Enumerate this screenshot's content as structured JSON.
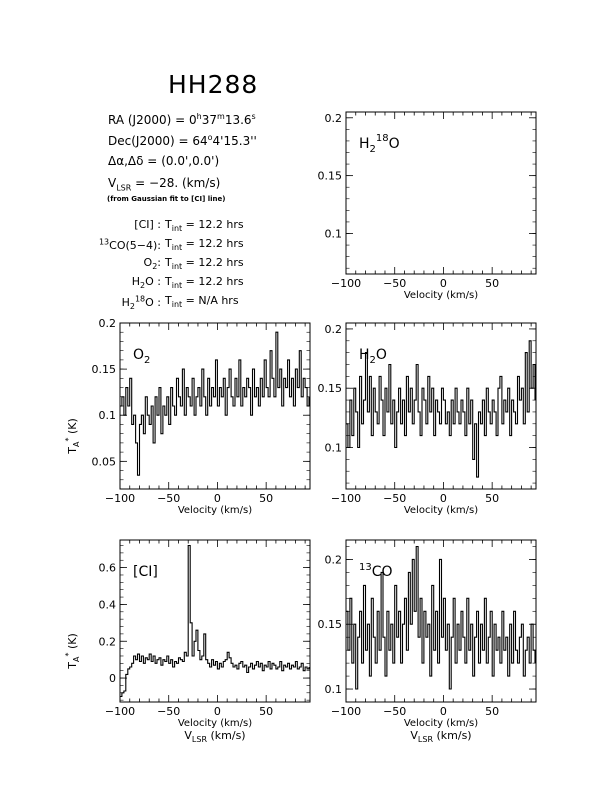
{
  "source": {
    "title": "HH288",
    "ra_label": "RA (J2000) =",
    "ra_h": "0",
    "ra_m": "37",
    "ra_s": "13.6",
    "dec_label": "Dec(J2000) =",
    "dec_deg": "64",
    "dec_rest": "4'15.3''",
    "offset_label": "Δα,Δδ =",
    "offset_value": "(0.0',0.0')",
    "vlsr_label": "V",
    "vlsr_sub": "LSR",
    "vlsr_value": "= −28. (km/s)",
    "vlsr_note": "(from Gaussian fit to [CI] line)"
  },
  "integration_times": [
    {
      "line_pre": "[CI] :",
      "line_sup": "",
      "value": "12.2 hrs"
    },
    {
      "line_pre": "CO(5−4):",
      "line_sup": "13",
      "value": "12.2 hrs"
    },
    {
      "line_pre": "O",
      "line_sub": "2",
      "line_post": ":",
      "value": "12.2 hrs"
    },
    {
      "line_pre": "H",
      "line_sub": "2",
      "line_post": "O :",
      "value": "12.2 hrs"
    },
    {
      "line_pre": "H",
      "line_sub": "2",
      "line_sup": "18",
      "line_post": "O :",
      "value": "N/A hrs"
    }
  ],
  "tint_label": "T",
  "tint_sub": "int",
  "tint_eq": "=",
  "chart_data": [
    {
      "id": "h218o",
      "type": "line",
      "label": "H2 18O",
      "label_parts": {
        "main": "H",
        "sub": "2",
        "sup": "18",
        "post": "O"
      },
      "xlabel": "Velocity (km/s)",
      "ylabel": "",
      "xlim": [
        -100,
        95
      ],
      "ylim": [
        0.065,
        0.205
      ],
      "xticks": [
        -100,
        -50,
        0,
        50
      ],
      "yticks": [
        0.1,
        0.15,
        0.2
      ],
      "ytick_labels": [
        "0.1",
        "0.15",
        "0.2"
      ],
      "series": []
    },
    {
      "id": "o2",
      "type": "line",
      "label": "O2",
      "label_parts": {
        "main": "O",
        "sub": "2"
      },
      "xlabel": "Velocity (km/s)",
      "ylabel": "T_A* (K)",
      "xlim": [
        -100,
        95
      ],
      "ylim": [
        0.02,
        0.2
      ],
      "xticks": [
        -100,
        -50,
        0,
        50
      ],
      "yticks": [
        0.05,
        0.1,
        0.15,
        0.2
      ],
      "ytick_labels": [
        "0.05",
        "0.1",
        "0.15",
        "0.2"
      ],
      "series": [
        {
          "x": [
            -100,
            -98,
            -96,
            -94,
            -92,
            -90,
            -88,
            -86,
            -84,
            -82,
            -80,
            -78,
            -76,
            -74,
            -72,
            -70,
            -68,
            -66,
            -64,
            -62,
            -60,
            -58,
            -56,
            -54,
            -52,
            -50,
            -48,
            -46,
            -44,
            -42,
            -40,
            -38,
            -36,
            -34,
            -32,
            -30,
            -28,
            -26,
            -24,
            -22,
            -20,
            -18,
            -16,
            -14,
            -12,
            -10,
            -8,
            -6,
            -4,
            -2,
            0,
            2,
            4,
            6,
            8,
            10,
            12,
            14,
            16,
            18,
            20,
            22,
            24,
            26,
            28,
            30,
            32,
            34,
            36,
            38,
            40,
            42,
            44,
            46,
            48,
            50,
            52,
            54,
            56,
            58,
            60,
            62,
            64,
            66,
            68,
            70,
            72,
            74,
            76,
            78,
            80,
            82,
            84,
            86,
            88,
            90,
            92,
            94
          ],
          "y": [
            0.11,
            0.12,
            0.1,
            0.13,
            0.11,
            0.14,
            0.09,
            0.1,
            0.07,
            0.035,
            0.09,
            0.1,
            0.08,
            0.12,
            0.1,
            0.09,
            0.11,
            0.07,
            0.12,
            0.1,
            0.13,
            0.08,
            0.11,
            0.1,
            0.12,
            0.09,
            0.13,
            0.11,
            0.1,
            0.14,
            0.12,
            0.11,
            0.15,
            0.1,
            0.13,
            0.12,
            0.11,
            0.14,
            0.1,
            0.12,
            0.13,
            0.11,
            0.15,
            0.12,
            0.1,
            0.14,
            0.11,
            0.13,
            0.12,
            0.16,
            0.11,
            0.13,
            0.12,
            0.14,
            0.1,
            0.13,
            0.15,
            0.12,
            0.11,
            0.14,
            0.12,
            0.16,
            0.11,
            0.13,
            0.12,
            0.14,
            0.13,
            0.1,
            0.15,
            0.12,
            0.13,
            0.11,
            0.14,
            0.12,
            0.16,
            0.13,
            0.12,
            0.17,
            0.14,
            0.12,
            0.19,
            0.13,
            0.15,
            0.11,
            0.14,
            0.13,
            0.16,
            0.12,
            0.14,
            0.11,
            0.15,
            0.13,
            0.17,
            0.12,
            0.14,
            0.13,
            0.11,
            0.12
          ]
        }
      ]
    },
    {
      "id": "h2o",
      "type": "line",
      "label": "H2O",
      "label_parts": {
        "main": "H",
        "sub": "2",
        "post": "O"
      },
      "xlabel": "Velocity (km/s)",
      "ylabel": "",
      "xlim": [
        -100,
        95
      ],
      "ylim": [
        0.065,
        0.205
      ],
      "xticks": [
        -100,
        -50,
        0,
        50
      ],
      "yticks": [
        0.1,
        0.15,
        0.2
      ],
      "ytick_labels": [
        "0.1",
        "0.15",
        "0.2"
      ],
      "series": [
        {
          "x": [
            -100,
            -98,
            -96,
            -94,
            -92,
            -90,
            -88,
            -86,
            -84,
            -82,
            -80,
            -78,
            -76,
            -74,
            -72,
            -70,
            -68,
            -66,
            -64,
            -62,
            -60,
            -58,
            -56,
            -54,
            -52,
            -50,
            -48,
            -46,
            -44,
            -42,
            -40,
            -38,
            -36,
            -34,
            -32,
            -30,
            -28,
            -26,
            -24,
            -22,
            -20,
            -18,
            -16,
            -14,
            -12,
            -10,
            -8,
            -6,
            -4,
            -2,
            0,
            2,
            4,
            6,
            8,
            10,
            12,
            14,
            16,
            18,
            20,
            22,
            24,
            26,
            28,
            30,
            32,
            34,
            36,
            38,
            40,
            42,
            44,
            46,
            48,
            50,
            52,
            54,
            56,
            58,
            60,
            62,
            64,
            66,
            68,
            70,
            72,
            74,
            76,
            78,
            80,
            82,
            84,
            86,
            88,
            90,
            92,
            94
          ],
          "y": [
            0.12,
            0.1,
            0.14,
            0.11,
            0.15,
            0.13,
            0.1,
            0.16,
            0.12,
            0.14,
            0.18,
            0.13,
            0.16,
            0.11,
            0.15,
            0.13,
            0.12,
            0.16,
            0.14,
            0.11,
            0.15,
            0.13,
            0.17,
            0.12,
            0.14,
            0.1,
            0.13,
            0.15,
            0.12,
            0.14,
            0.11,
            0.16,
            0.13,
            0.15,
            0.12,
            0.14,
            0.17,
            0.13,
            0.11,
            0.15,
            0.14,
            0.12,
            0.16,
            0.13,
            0.15,
            0.11,
            0.14,
            0.13,
            0.12,
            0.15,
            0.14,
            0.12,
            0.13,
            0.11,
            0.14,
            0.12,
            0.15,
            0.13,
            0.12,
            0.14,
            0.13,
            0.11,
            0.15,
            0.12,
            0.14,
            0.09,
            0.12,
            0.075,
            0.13,
            0.12,
            0.14,
            0.11,
            0.15,
            0.13,
            0.12,
            0.14,
            0.13,
            0.11,
            0.15,
            0.16,
            0.12,
            0.14,
            0.13,
            0.15,
            0.11,
            0.14,
            0.13,
            0.12,
            0.16,
            0.14,
            0.15,
            0.12,
            0.18,
            0.13,
            0.19,
            0.15,
            0.17,
            0.14
          ]
        }
      ]
    },
    {
      "id": "ci",
      "type": "line",
      "label": "[CI]",
      "label_parts": {
        "main": "[CI]"
      },
      "xlabel": "Velocity (km/s)",
      "xlabel2": "V_LSR (km/s)",
      "ylabel": "T_A* (K)",
      "xlim": [
        -100,
        95
      ],
      "ylim": [
        -0.13,
        0.75
      ],
      "xticks": [
        -100,
        -50,
        0,
        50
      ],
      "yticks": [
        0,
        0.2,
        0.4,
        0.6
      ],
      "ytick_labels": [
        "0",
        "0.2",
        "0.4",
        "0.6"
      ],
      "series": [
        {
          "x": [
            -100,
            -98,
            -96,
            -94,
            -92,
            -90,
            -88,
            -86,
            -84,
            -82,
            -80,
            -78,
            -76,
            -74,
            -72,
            -70,
            -68,
            -66,
            -64,
            -62,
            -60,
            -58,
            -56,
            -54,
            -52,
            -50,
            -48,
            -46,
            -44,
            -42,
            -40,
            -38,
            -36,
            -34,
            -32,
            -30,
            -28,
            -26,
            -24,
            -22,
            -20,
            -18,
            -16,
            -14,
            -12,
            -10,
            -8,
            -6,
            -4,
            -2,
            0,
            2,
            4,
            6,
            8,
            10,
            12,
            14,
            16,
            18,
            20,
            22,
            24,
            26,
            28,
            30,
            32,
            34,
            36,
            38,
            40,
            42,
            44,
            46,
            48,
            50,
            52,
            54,
            56,
            58,
            60,
            62,
            64,
            66,
            68,
            70,
            72,
            74,
            76,
            78,
            80,
            82,
            84,
            86,
            88,
            90,
            92,
            94
          ],
          "y": [
            -0.1,
            -0.08,
            -0.07,
            0.02,
            0.05,
            0.06,
            0.08,
            0.12,
            0.1,
            0.13,
            0.09,
            0.12,
            0.08,
            0.11,
            0.1,
            0.13,
            0.09,
            0.12,
            0.08,
            0.1,
            0.11,
            0.07,
            0.1,
            0.09,
            0.12,
            0.08,
            0.1,
            0.06,
            0.09,
            0.08,
            0.11,
            0.1,
            0.09,
            0.14,
            0.12,
            0.72,
            0.3,
            0.12,
            0.2,
            0.26,
            0.15,
            0.1,
            0.12,
            0.24,
            0.1,
            0.08,
            0.06,
            0.1,
            0.07,
            0.09,
            0.05,
            0.08,
            0.06,
            0.09,
            0.1,
            0.14,
            0.11,
            0.08,
            0.06,
            0.07,
            0.05,
            0.08,
            0.09,
            0.06,
            0.07,
            0.03,
            0.06,
            0.08,
            0.05,
            0.07,
            0.09,
            0.06,
            0.08,
            0.04,
            0.07,
            0.06,
            0.09,
            0.05,
            0.08,
            0.07,
            0.05,
            0.06,
            0.09,
            0.04,
            0.07,
            0.06,
            0.08,
            0.05,
            0.07,
            0.06,
            0.09,
            0.05,
            0.06,
            0.08,
            0.04,
            0.06,
            0.05,
            0.06
          ]
        }
      ]
    },
    {
      "id": "13co",
      "type": "line",
      "label": "13CO",
      "label_parts": {
        "main": "CO",
        "pre_sup": "13"
      },
      "xlabel": "Velocity (km/s)",
      "xlabel2": "V_LSR (km/s)",
      "ylabel": "",
      "xlim": [
        -100,
        95
      ],
      "ylim": [
        0.09,
        0.215
      ],
      "xticks": [
        -100,
        -50,
        0,
        50
      ],
      "yticks": [
        0.1,
        0.15,
        0.2
      ],
      "ytick_labels": [
        "0.1",
        "0.15",
        "0.2"
      ],
      "series": [
        {
          "x": [
            -100,
            -98,
            -96,
            -94,
            -92,
            -90,
            -88,
            -86,
            -84,
            -82,
            -80,
            -78,
            -76,
            -74,
            -72,
            -70,
            -68,
            -66,
            -64,
            -62,
            -60,
            -58,
            -56,
            -54,
            -52,
            -50,
            -48,
            -46,
            -44,
            -42,
            -40,
            -38,
            -36,
            -34,
            -32,
            -30,
            -28,
            -26,
            -24,
            -22,
            -20,
            -18,
            -16,
            -14,
            -12,
            -10,
            -8,
            -6,
            -4,
            -2,
            0,
            2,
            4,
            6,
            8,
            10,
            12,
            14,
            16,
            18,
            20,
            22,
            24,
            26,
            28,
            30,
            32,
            34,
            36,
            38,
            40,
            42,
            44,
            46,
            48,
            50,
            52,
            54,
            56,
            58,
            60,
            62,
            64,
            66,
            68,
            70,
            72,
            74,
            76,
            78,
            80,
            82,
            84,
            86,
            88,
            90,
            92,
            94
          ],
          "y": [
            0.16,
            0.13,
            0.17,
            0.12,
            0.15,
            0.1,
            0.14,
            0.16,
            0.12,
            0.18,
            0.13,
            0.15,
            0.11,
            0.17,
            0.14,
            0.12,
            0.16,
            0.13,
            0.19,
            0.14,
            0.11,
            0.16,
            0.13,
            0.15,
            0.12,
            0.18,
            0.14,
            0.16,
            0.12,
            0.15,
            0.17,
            0.13,
            0.19,
            0.15,
            0.2,
            0.16,
            0.21,
            0.14,
            0.17,
            0.12,
            0.16,
            0.14,
            0.15,
            0.11,
            0.18,
            0.13,
            0.16,
            0.12,
            0.2,
            0.14,
            0.17,
            0.13,
            0.15,
            0.1,
            0.14,
            0.17,
            0.12,
            0.15,
            0.13,
            0.16,
            0.14,
            0.12,
            0.17,
            0.13,
            0.15,
            0.11,
            0.14,
            0.16,
            0.12,
            0.15,
            0.13,
            0.17,
            0.12,
            0.14,
            0.16,
            0.11,
            0.15,
            0.13,
            0.14,
            0.12,
            0.16,
            0.13,
            0.14,
            0.11,
            0.15,
            0.12,
            0.16,
            0.13,
            0.12,
            0.14,
            0.15,
            0.11,
            0.13,
            0.14,
            0.12,
            0.15,
            0.13,
            0.12
          ]
        }
      ]
    }
  ]
}
